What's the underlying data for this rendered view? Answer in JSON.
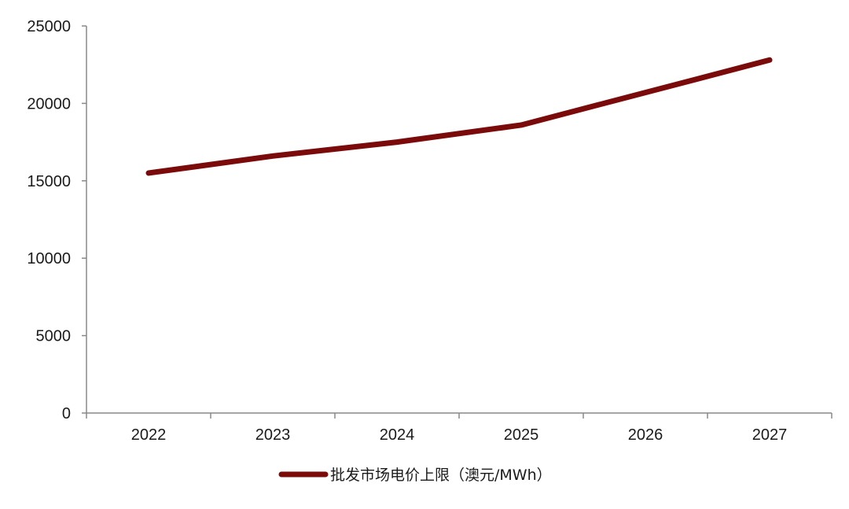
{
  "chart_data": {
    "type": "line",
    "categories": [
      "2022",
      "2023",
      "2024",
      "2025",
      "2026",
      "2027"
    ],
    "series": [
      {
        "name": "批发市场电价上限（澳元/MWh）",
        "values": [
          15500,
          16600,
          17500,
          18600,
          20700,
          22800
        ],
        "color": "#7b0a0a"
      }
    ],
    "ylim": [
      0,
      25000
    ],
    "yticks": [
      "0",
      "5000",
      "10000",
      "15000",
      "20000",
      "25000"
    ],
    "legend_position": "bottom-center",
    "grid": false
  }
}
